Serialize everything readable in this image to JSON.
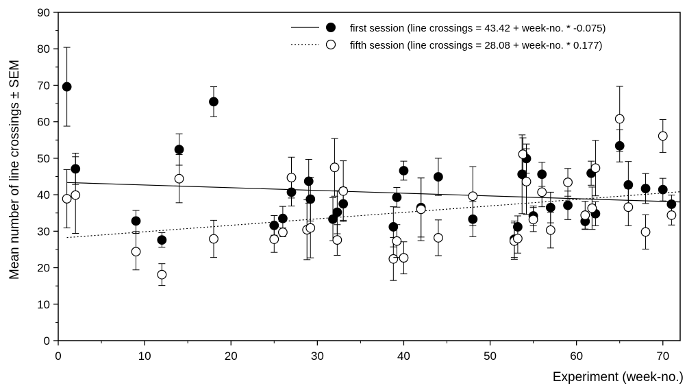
{
  "chart_data": {
    "type": "scatter",
    "xlabel": "Experiment (week-no.)",
    "ylabel": "Mean number of line crossings ± SEM",
    "xlim": [
      0,
      72
    ],
    "ylim": [
      0,
      90
    ],
    "xticks": [
      0,
      10,
      20,
      30,
      40,
      50,
      60,
      70
    ],
    "yticks": [
      0,
      10,
      20,
      30,
      40,
      50,
      60,
      70,
      80,
      90
    ],
    "grid": false,
    "legend_position": "top-right",
    "series": [
      {
        "name": "first session (line crossings = 43.42 + week-no. * -0.075)",
        "marker": "filled-circle",
        "color": "#000000",
        "regression": {
          "intercept": 43.42,
          "slope": -0.075,
          "style": "solid"
        },
        "points": [
          {
            "x": 1,
            "y": 69.6,
            "err": 10.8
          },
          {
            "x": 2,
            "y": 47.1,
            "err": 4.3
          },
          {
            "x": 9,
            "y": 32.8,
            "err": 2.9
          },
          {
            "x": 12,
            "y": 27.6,
            "err": 2.0
          },
          {
            "x": 14,
            "y": 52.4,
            "err": 4.3
          },
          {
            "x": 18,
            "y": 65.5,
            "err": 4.1
          },
          {
            "x": 25,
            "y": 31.6,
            "err": 2.7
          },
          {
            "x": 26,
            "y": 33.5,
            "err": 3.3
          },
          {
            "x": 27,
            "y": 40.7,
            "err": 3.8
          },
          {
            "x": 29,
            "y": 43.7,
            "err": 6.0
          },
          {
            "x": 29.2,
            "y": 38.8,
            "err": 6.0
          },
          {
            "x": 31.8,
            "y": 33.3,
            "err": 5.9
          },
          {
            "x": 32.3,
            "y": 35.2,
            "err": 5.9
          },
          {
            "x": 33,
            "y": 37.5,
            "err": 4.5
          },
          {
            "x": 38.8,
            "y": 31.2,
            "err": 5.5
          },
          {
            "x": 39.2,
            "y": 39.3,
            "err": 2.7
          },
          {
            "x": 40,
            "y": 46.6,
            "err": 2.6
          },
          {
            "x": 42,
            "y": 36.5,
            "err": 8.1
          },
          {
            "x": 44,
            "y": 44.9,
            "err": 5.1
          },
          {
            "x": 48,
            "y": 33.3,
            "err": 4.8
          },
          {
            "x": 52.8,
            "y": 27.8,
            "err": 5.0
          },
          {
            "x": 53.2,
            "y": 31.2,
            "err": 3.0
          },
          {
            "x": 53.7,
            "y": 45.6,
            "err": 10.8
          },
          {
            "x": 54.2,
            "y": 49.9,
            "err": 4.0
          },
          {
            "x": 55,
            "y": 34.2,
            "err": 2.7
          },
          {
            "x": 56,
            "y": 45.6,
            "err": 3.3
          },
          {
            "x": 57,
            "y": 36.5,
            "err": 4.2
          },
          {
            "x": 59,
            "y": 37.1,
            "err": 3.9
          },
          {
            "x": 61,
            "y": 32.7,
            "err": 2.2
          },
          {
            "x": 61.7,
            "y": 45.9,
            "err": 3.3
          },
          {
            "x": 62.2,
            "y": 34.8,
            "err": 3.3
          },
          {
            "x": 65,
            "y": 53.4,
            "err": 4.4
          },
          {
            "x": 66,
            "y": 42.7,
            "err": 6.4
          },
          {
            "x": 68,
            "y": 41.7,
            "err": 4.1
          },
          {
            "x": 70,
            "y": 41.4,
            "err": 3.1
          },
          {
            "x": 71,
            "y": 37.4,
            "err": 2.5
          }
        ]
      },
      {
        "name": "fifth session (line crossings = 28.08 + week-no. *  0.177)",
        "marker": "open-circle",
        "color": "#000000",
        "regression": {
          "intercept": 28.08,
          "slope": 0.177,
          "style": "dotted"
        },
        "points": [
          {
            "x": 1,
            "y": 38.9,
            "err": 8.0
          },
          {
            "x": 2,
            "y": 39.9,
            "err": 10.5
          },
          {
            "x": 9,
            "y": 24.4,
            "err": 5.0
          },
          {
            "x": 12,
            "y": 18.1,
            "err": 3.0
          },
          {
            "x": 14,
            "y": 44.4,
            "err": 6.6
          },
          {
            "x": 18,
            "y": 27.9,
            "err": 5.1
          },
          {
            "x": 25,
            "y": 27.8,
            "err": 3.6
          },
          {
            "x": 26,
            "y": 29.7,
            "err": 1.2
          },
          {
            "x": 27,
            "y": 44.7,
            "err": 5.6
          },
          {
            "x": 28.8,
            "y": 30.4,
            "err": 8.2
          },
          {
            "x": 29.2,
            "y": 30.9,
            "err": 8.2
          },
          {
            "x": 32,
            "y": 47.5,
            "err": 7.9
          },
          {
            "x": 32.3,
            "y": 27.6,
            "err": 4.2
          },
          {
            "x": 33,
            "y": 41.0,
            "err": 8.3
          },
          {
            "x": 38.8,
            "y": 22.4,
            "err": 5.9
          },
          {
            "x": 39.2,
            "y": 27.3,
            "err": 4.5
          },
          {
            "x": 40,
            "y": 22.7,
            "err": 4.4
          },
          {
            "x": 42,
            "y": 36.0,
            "err": 8.6
          },
          {
            "x": 44,
            "y": 28.2,
            "err": 4.9
          },
          {
            "x": 48,
            "y": 39.6,
            "err": 8.1
          },
          {
            "x": 52.8,
            "y": 27.3,
            "err": 5.0
          },
          {
            "x": 53.2,
            "y": 28.0,
            "err": 4.0
          },
          {
            "x": 53.8,
            "y": 51.1,
            "err": 4.5
          },
          {
            "x": 54.2,
            "y": 43.6,
            "err": 9.0
          },
          {
            "x": 55,
            "y": 33.2,
            "err": 3.3
          },
          {
            "x": 56,
            "y": 40.7,
            "err": 4.0
          },
          {
            "x": 57,
            "y": 30.3,
            "err": 4.9
          },
          {
            "x": 59,
            "y": 43.4,
            "err": 3.8
          },
          {
            "x": 61,
            "y": 34.4,
            "err": 3.8
          },
          {
            "x": 61.8,
            "y": 36.3,
            "err": 5.8
          },
          {
            "x": 62.2,
            "y": 47.3,
            "err": 7.6
          },
          {
            "x": 65,
            "y": 60.8,
            "err": 8.9
          },
          {
            "x": 66,
            "y": 36.6,
            "err": 5.1
          },
          {
            "x": 68,
            "y": 29.8,
            "err": 4.7
          },
          {
            "x": 70,
            "y": 56.1,
            "err": 4.5
          },
          {
            "x": 71,
            "y": 34.4,
            "err": 2.7
          }
        ]
      }
    ]
  }
}
